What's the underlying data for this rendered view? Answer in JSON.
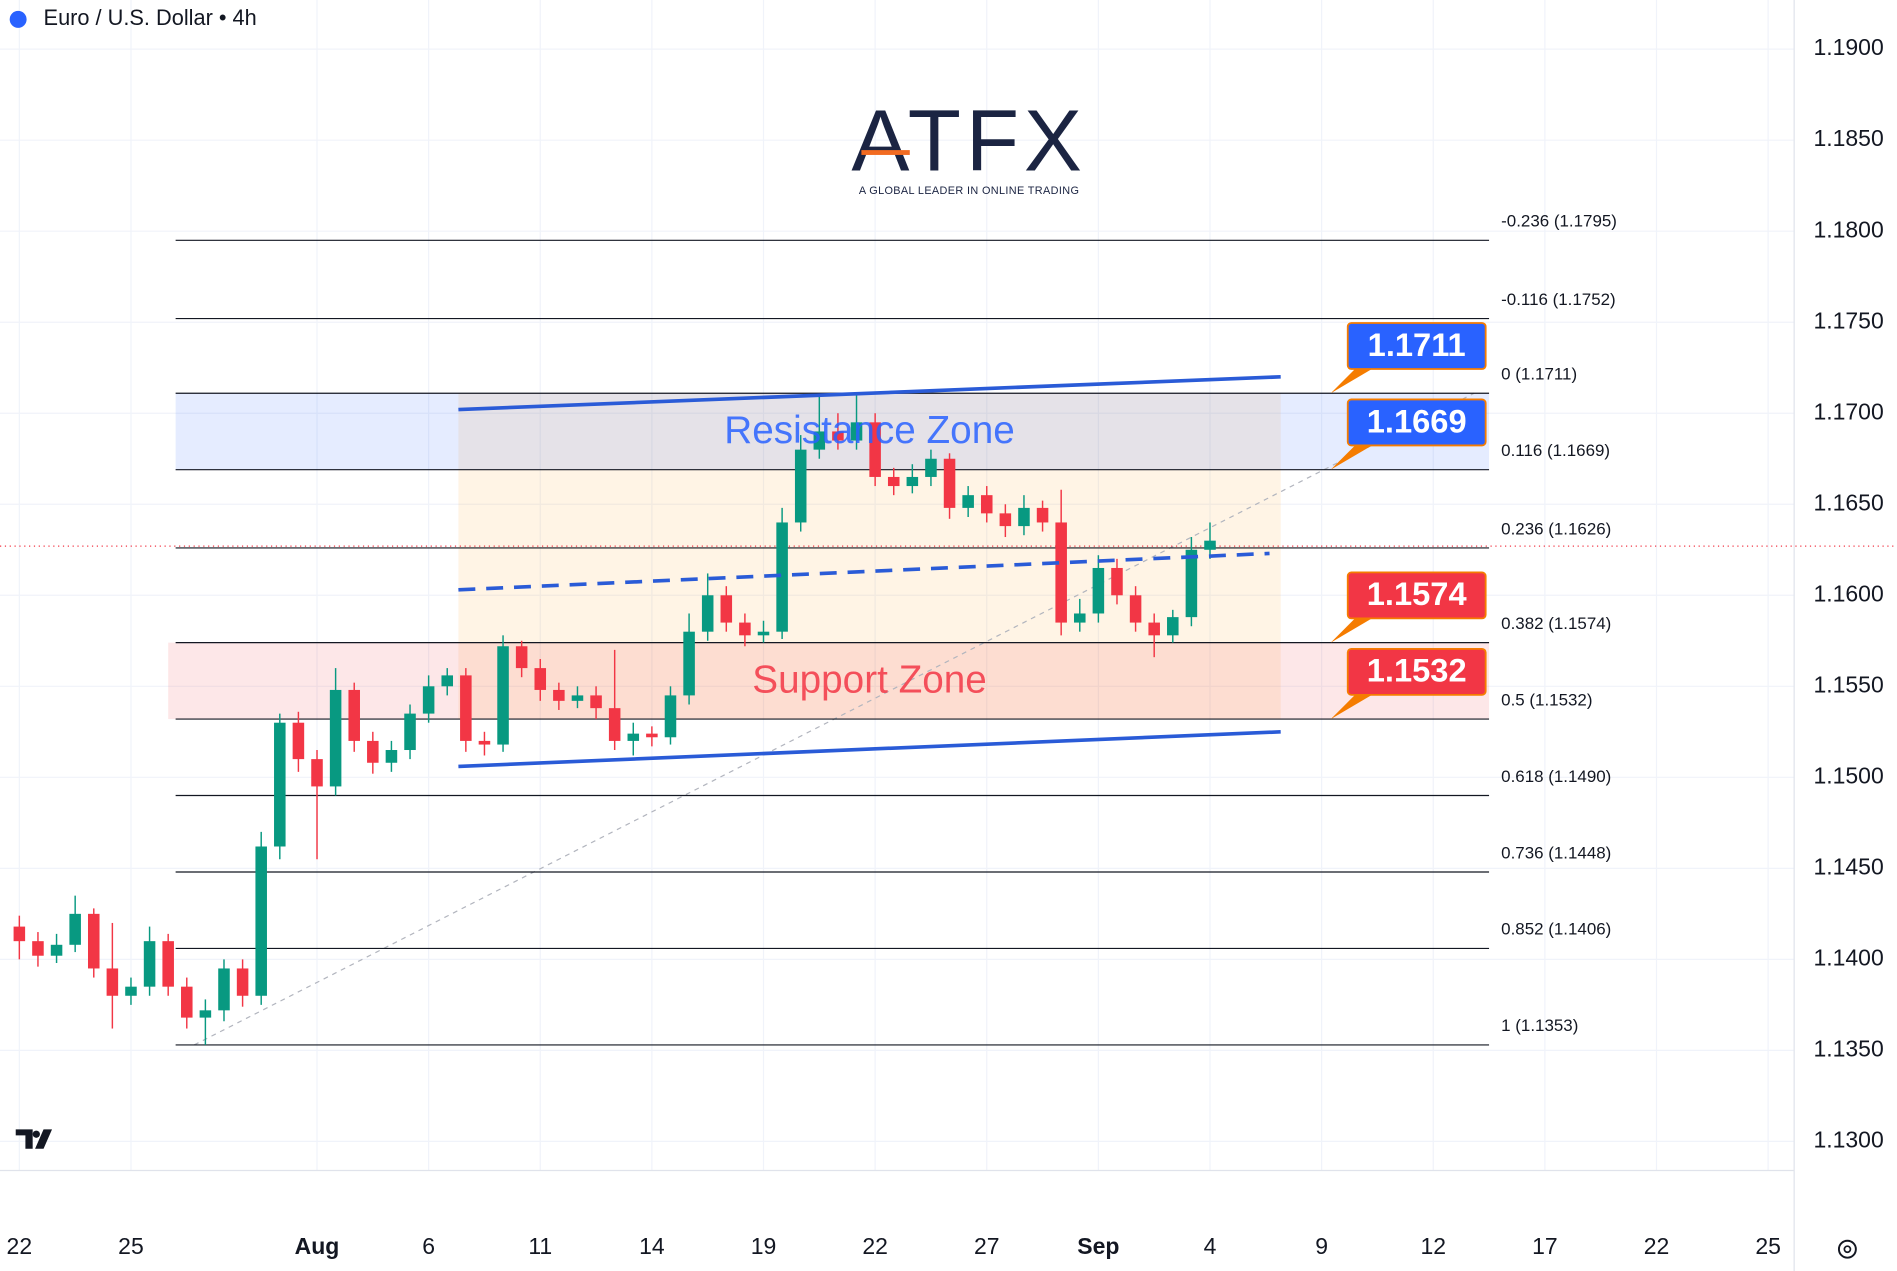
{
  "header": {
    "symbol": "Euro / U.S. Dollar • 4h"
  },
  "logo": {
    "name": "ATFX",
    "tagline": "A GLOBAL LEADER IN ONLINE TRADING"
  },
  "chart_data": {
    "type": "candlestick",
    "up_color": "#089981",
    "down_color": "#f23645",
    "grid": true,
    "xlim": [
      -0.52,
      47.7
    ],
    "ylim": [
      1.1284,
      1.1927
    ],
    "xticks": [
      {
        "value": 0,
        "label": "22"
      },
      {
        "value": 3,
        "label": "25"
      },
      {
        "value": 8,
        "label": "Aug"
      },
      {
        "value": 11,
        "label": "6"
      },
      {
        "value": 14,
        "label": "11"
      },
      {
        "value": 17,
        "label": "14"
      },
      {
        "value": 20,
        "label": "19"
      },
      {
        "value": 23,
        "label": "22"
      },
      {
        "value": 26,
        "label": "27"
      },
      {
        "value": 29,
        "label": "Sep"
      },
      {
        "value": 32,
        "label": "4"
      },
      {
        "value": 35,
        "label": "9"
      },
      {
        "value": 38,
        "label": "12"
      },
      {
        "value": 41,
        "label": "17"
      },
      {
        "value": 44,
        "label": "22"
      },
      {
        "value": 47,
        "label": "25"
      }
    ],
    "yticks": [
      {
        "value": 1.19,
        "label": "1.1900"
      },
      {
        "value": 1.185,
        "label": "1.1850"
      },
      {
        "value": 1.18,
        "label": "1.1800"
      },
      {
        "value": 1.175,
        "label": "1.1750"
      },
      {
        "value": 1.17,
        "label": "1.1700"
      },
      {
        "value": 1.165,
        "label": "1.1650"
      },
      {
        "value": 1.16,
        "label": "1.1600"
      },
      {
        "value": 1.155,
        "label": "1.1550"
      },
      {
        "value": 1.15,
        "label": "1.1500"
      },
      {
        "value": 1.145,
        "label": "1.1450"
      },
      {
        "value": 1.14,
        "label": "1.1400"
      },
      {
        "value": 1.135,
        "label": "1.1350"
      },
      {
        "value": 1.13,
        "label": "1.1300"
      }
    ],
    "x": [
      0,
      0.5,
      1,
      1.5,
      2,
      2.5,
      3,
      3.5,
      4,
      4.5,
      5,
      5.5,
      6,
      6.5,
      7,
      7.5,
      8,
      8.5,
      9,
      9.5,
      10,
      10.5,
      11,
      11.5,
      12,
      12.5,
      13,
      13.5,
      14,
      14.5,
      15,
      15.5,
      16,
      16.5,
      17,
      17.5,
      18,
      18.5,
      19,
      19.5,
      20,
      20.5,
      21,
      21.5,
      22,
      22.5,
      23,
      23.5,
      24,
      24.5,
      25,
      25.5,
      26,
      26.5,
      27,
      27.5,
      28,
      28.5,
      29,
      29.5,
      30,
      30.5,
      31,
      31.5,
      32
    ],
    "open": [
      1.1418,
      1.141,
      1.1402,
      1.1408,
      1.1425,
      1.1395,
      1.138,
      1.1385,
      1.141,
      1.1385,
      1.1368,
      1.1372,
      1.1395,
      1.138,
      1.1462,
      1.153,
      1.151,
      1.1495,
      1.1548,
      1.152,
      1.1508,
      1.1515,
      1.1535,
      1.155,
      1.1556,
      1.152,
      1.1518,
      1.1572,
      1.156,
      1.1548,
      1.1542,
      1.1545,
      1.1538,
      1.152,
      1.1524,
      1.1522,
      1.1545,
      1.158,
      1.16,
      1.1585,
      1.1578,
      1.158,
      1.164,
      1.168,
      1.169,
      1.1685,
      1.1695,
      1.1665,
      1.166,
      1.1665,
      1.1675,
      1.1648,
      1.1655,
      1.1645,
      1.1638,
      1.1648,
      1.164,
      1.1585,
      1.159,
      1.1615,
      1.16,
      1.1585,
      1.1578,
      1.1588,
      1.1625
    ],
    "high": [
      1.1424,
      1.1415,
      1.1414,
      1.1435,
      1.1428,
      1.142,
      1.139,
      1.1418,
      1.1414,
      1.139,
      1.1378,
      1.14,
      1.14,
      1.147,
      1.1535,
      1.1536,
      1.1515,
      1.156,
      1.1552,
      1.1525,
      1.152,
      1.154,
      1.1556,
      1.156,
      1.156,
      1.1525,
      1.1578,
      1.1575,
      1.1565,
      1.1552,
      1.155,
      1.155,
      1.157,
      1.153,
      1.1528,
      1.155,
      1.159,
      1.1612,
      1.1605,
      1.159,
      1.1586,
      1.1648,
      1.1688,
      1.171,
      1.17,
      1.1711,
      1.17,
      1.167,
      1.1672,
      1.168,
      1.1678,
      1.166,
      1.166,
      1.165,
      1.1655,
      1.1652,
      1.1658,
      1.1598,
      1.1622,
      1.162,
      1.1605,
      1.159,
      1.1592,
      1.1632,
      1.164
    ],
    "low": [
      1.14,
      1.1396,
      1.1398,
      1.1404,
      1.139,
      1.1362,
      1.1375,
      1.138,
      1.138,
      1.1362,
      1.1353,
      1.1366,
      1.1374,
      1.1375,
      1.1455,
      1.1503,
      1.1455,
      1.149,
      1.1514,
      1.1502,
      1.1503,
      1.151,
      1.153,
      1.1545,
      1.1514,
      1.1512,
      1.1514,
      1.1555,
      1.1542,
      1.1537,
      1.1538,
      1.1532,
      1.1515,
      1.1512,
      1.1517,
      1.1518,
      1.154,
      1.1575,
      1.158,
      1.1572,
      1.1574,
      1.1576,
      1.1635,
      1.1675,
      1.168,
      1.168,
      1.166,
      1.1655,
      1.1656,
      1.166,
      1.1642,
      1.1643,
      1.164,
      1.1632,
      1.1633,
      1.1635,
      1.1578,
      1.158,
      1.1585,
      1.1595,
      1.158,
      1.1566,
      1.1574,
      1.1583,
      1.162
    ],
    "close": [
      1.141,
      1.1402,
      1.1408,
      1.1425,
      1.1395,
      1.138,
      1.1385,
      1.141,
      1.1385,
      1.1368,
      1.1372,
      1.1395,
      1.138,
      1.1462,
      1.153,
      1.151,
      1.1495,
      1.1548,
      1.152,
      1.1508,
      1.1515,
      1.1535,
      1.155,
      1.1556,
      1.152,
      1.1518,
      1.1572,
      1.156,
      1.1548,
      1.1542,
      1.1545,
      1.1538,
      1.152,
      1.1524,
      1.1522,
      1.1545,
      1.158,
      1.16,
      1.1585,
      1.1578,
      1.158,
      1.164,
      1.168,
      1.169,
      1.1685,
      1.1695,
      1.1665,
      1.166,
      1.1665,
      1.1675,
      1.1648,
      1.1655,
      1.1645,
      1.1638,
      1.1648,
      1.164,
      1.1585,
      1.159,
      1.1615,
      1.16,
      1.1585,
      1.1578,
      1.1588,
      1.1625,
      1.163
    ],
    "last_price": 1.1627,
    "fib_x": [
      4.2,
      39.5
    ],
    "fib_levels": [
      {
        "value": 1.1795,
        "label": "-0.236 (1.1795)"
      },
      {
        "value": 1.1752,
        "label": "-0.116 (1.1752)"
      },
      {
        "value": 1.1711,
        "label": "0 (1.1711)"
      },
      {
        "value": 1.1669,
        "label": "0.116 (1.1669)"
      },
      {
        "value": 1.1626,
        "label": "0.236 (1.1626)"
      },
      {
        "value": 1.1574,
        "label": "0.382 (1.1574)"
      },
      {
        "value": 1.1532,
        "label": "0.5 (1.1532)"
      },
      {
        "value": 1.149,
        "label": "0.618 (1.1490)"
      },
      {
        "value": 1.1448,
        "label": "0.736 (1.1448)"
      },
      {
        "value": 1.1406,
        "label": "0.852 (1.1406)"
      },
      {
        "value": 1.1353,
        "label": "1 (1.1353)"
      }
    ],
    "fib_trend": {
      "x": [
        4.7,
        39.1
      ],
      "y": [
        1.1353,
        1.1711
      ]
    },
    "range_box": {
      "x": [
        11.8,
        33.9
      ],
      "y": [
        1.1532,
        1.1711
      ],
      "color": "#ff9800"
    },
    "zones": [
      {
        "name": "Resistance Zone",
        "from": 1.1669,
        "to": 1.1711,
        "x": [
          4.2,
          39.5
        ],
        "color": "#2962ff"
      },
      {
        "name": "Support Zone",
        "from": 1.1532,
        "to": 1.1574,
        "x": [
          4.0,
          39.5
        ],
        "color": "#f23645"
      }
    ],
    "trendlines": [
      {
        "x": [
          11.8,
          33.9
        ],
        "y": [
          1.1702,
          1.172
        ],
        "dashed": false
      },
      {
        "x": [
          11.8,
          33.6
        ],
        "y": [
          1.1603,
          1.1623
        ],
        "dashed": true
      },
      {
        "x": [
          11.8,
          33.9
        ],
        "y": [
          1.1506,
          1.1525
        ],
        "dashed": false
      }
    ],
    "trend_color": "#2a5bd7",
    "callouts": [
      {
        "value": 1.1711,
        "color": "#2962ff"
      },
      {
        "value": 1.1669,
        "color": "#2962ff"
      },
      {
        "value": 1.1574,
        "color": "#f23645"
      },
      {
        "value": 1.1532,
        "color": "#f23645"
      }
    ]
  }
}
